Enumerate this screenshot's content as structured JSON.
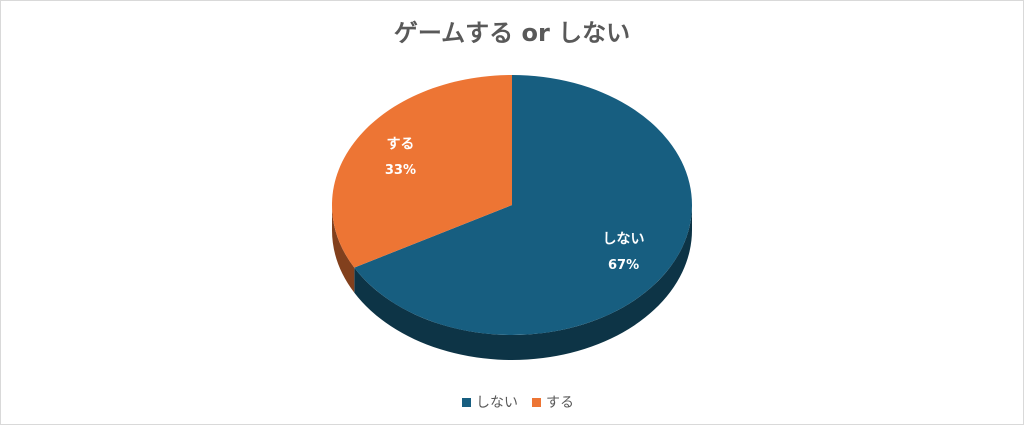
{
  "chart_data": {
    "type": "pie",
    "title": "ゲームする or しない",
    "categories": [
      "しない",
      "する"
    ],
    "values": [
      67,
      33
    ],
    "value_labels": [
      "67%",
      "33%"
    ],
    "colors": [
      "#175e80",
      "#ed7534"
    ],
    "legend": "bottom"
  }
}
